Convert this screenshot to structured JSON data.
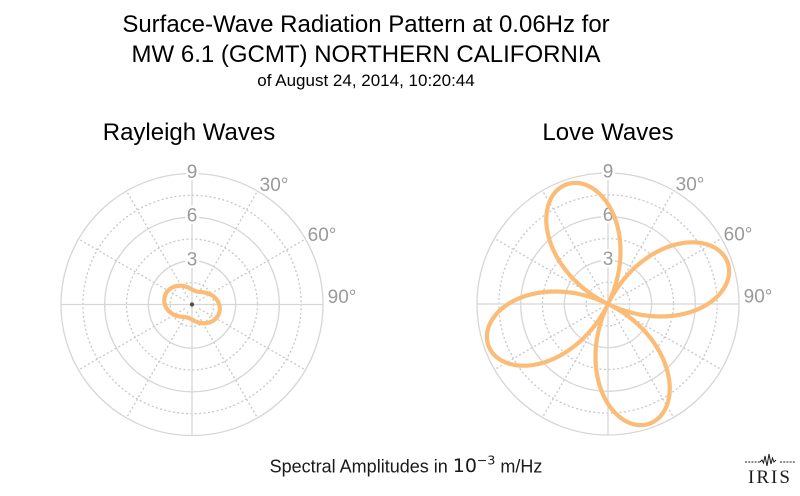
{
  "title": {
    "line1": "Surface-Wave Radiation Pattern at 0.06Hz for",
    "line2": "MW 6.1 (GCMT) NORTHERN CALIFORNIA",
    "line3": "of August 24, 2014, 10:20:44"
  },
  "caption": {
    "prefix": "Spectral Amplitudes in ",
    "unit_base": "10",
    "unit_exponent": "−3",
    "suffix": " m/Hz"
  },
  "logo": {
    "text": "IRIS"
  },
  "colors": {
    "curve": "#FBBC78",
    "grid": "#d6d6d6",
    "grid_dotted": "#c9c9c9",
    "tick_labels": "#9a9a9a",
    "title_text": "#000000"
  },
  "chart_data": [
    {
      "type": "polar-line",
      "title": "Rayleigh Waves",
      "r_axis": {
        "ticks": [
          3,
          6,
          9
        ],
        "tick_labels": [
          "3",
          "6",
          "9"
        ],
        "minor_circles": [
          1.5,
          4.5,
          7.5
        ],
        "max": 9,
        "units": "10^-3 m/Hz"
      },
      "theta_axis": {
        "labels": [
          {
            "text": "30°",
            "azimuth_deg": 30
          },
          {
            "text": "60°",
            "azimuth_deg": 60
          },
          {
            "text": "90°",
            "azimuth_deg": 90
          }
        ],
        "grid_step_deg": 30,
        "zero_direction": "up",
        "sense": "clockwise"
      },
      "series": [
        {
          "name": "rayleigh-radiation-pattern",
          "model": "r(az) = c + a*cos(2*(az - phi))",
          "params": {
            "c": 1.45,
            "a": 0.5,
            "phi_deg": 107
          },
          "max_amplitude": 1.95,
          "min_amplitude": 0.95,
          "lobe_azimuths_deg": [
            107,
            287
          ]
        }
      ]
    },
    {
      "type": "polar-line",
      "title": "Love Waves",
      "r_axis": {
        "ticks": [
          3,
          6,
          9
        ],
        "tick_labels": [
          "3",
          "6",
          "9"
        ],
        "minor_circles": [
          1.5,
          4.5,
          7.5
        ],
        "max": 9,
        "units": "10^-3 m/Hz"
      },
      "theta_axis": {
        "labels": [
          {
            "text": "30°",
            "azimuth_deg": 30
          },
          {
            "text": "60°",
            "azimuth_deg": 60
          },
          {
            "text": "90°",
            "azimuth_deg": 90
          }
        ],
        "grid_step_deg": 30,
        "zero_direction": "up",
        "sense": "clockwise"
      },
      "series": [
        {
          "name": "love-radiation-pattern",
          "model": "r(az) = A*abs(sin(2*(az - phi)))",
          "params": {
            "A": 8.7,
            "phi_deg": 26
          },
          "max_amplitude": 8.7,
          "min_amplitude": 0,
          "lobe_azimuths_deg": [
            71,
            161,
            251,
            341
          ],
          "node_azimuths_deg": [
            26,
            116,
            206,
            296
          ]
        }
      ]
    }
  ]
}
